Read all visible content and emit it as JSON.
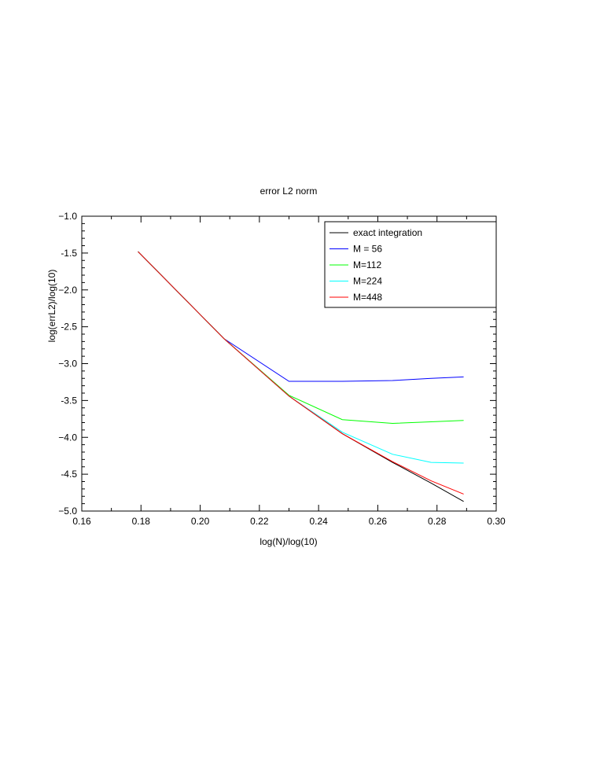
{
  "chart_data": {
    "type": "line",
    "title": "error L2 norm",
    "xlabel": "log(N)/log(10)",
    "ylabel": "log(errL2)/log(10)",
    "xlim": [
      0.16,
      0.3
    ],
    "ylim": [
      -5.0,
      -1.0
    ],
    "xticks": [
      0.16,
      0.18,
      0.2,
      0.22,
      0.24,
      0.26,
      0.28,
      0.3
    ],
    "xtick_labels": [
      "0.16",
      "0.18",
      "0.20",
      "0.22",
      "0.24",
      "0.26",
      "0.28",
      "0.30"
    ],
    "yticks": [
      -1.0,
      -1.5,
      -2.0,
      -2.5,
      -3.0,
      -3.5,
      -4.0,
      -4.5,
      -5.0
    ],
    "ytick_labels": [
      "−1.0",
      "-1.5",
      "−2.0",
      "-2.5",
      "−3.0",
      "-3.5",
      "−4.0",
      "-4.5",
      "−5.0"
    ],
    "grid": false,
    "legend_position": "top-right",
    "series": [
      {
        "name": "exact integration",
        "color": "#000000",
        "x": [
          0.179,
          0.208,
          0.23,
          0.248,
          0.265,
          0.278,
          0.289
        ],
        "y": [
          -1.48,
          -2.66,
          -3.44,
          -3.95,
          -4.34,
          -4.62,
          -4.87
        ]
      },
      {
        "name": "M = 56",
        "color": "#0000ff",
        "x": [
          0.179,
          0.208,
          0.23,
          0.248,
          0.265,
          0.278,
          0.289
        ],
        "y": [
          -1.48,
          -2.66,
          -3.24,
          -3.24,
          -3.23,
          -3.2,
          -3.18
        ]
      },
      {
        "name": "M=112",
        "color": "#00ff00",
        "x": [
          0.179,
          0.208,
          0.23,
          0.248,
          0.265,
          0.278,
          0.289
        ],
        "y": [
          -1.48,
          -2.66,
          -3.43,
          -3.76,
          -3.81,
          -3.79,
          -3.77
        ]
      },
      {
        "name": "M=224",
        "color": "#00ffff",
        "x": [
          0.179,
          0.208,
          0.23,
          0.248,
          0.265,
          0.278,
          0.289
        ],
        "y": [
          -1.48,
          -2.66,
          -3.44,
          -3.93,
          -4.23,
          -4.34,
          -4.35
        ]
      },
      {
        "name": "M=448",
        "color": "#ff0000",
        "x": [
          0.179,
          0.208,
          0.23,
          0.248,
          0.265,
          0.278,
          0.289
        ],
        "y": [
          -1.48,
          -2.66,
          -3.44,
          -3.95,
          -4.33,
          -4.59,
          -4.77
        ]
      }
    ]
  }
}
